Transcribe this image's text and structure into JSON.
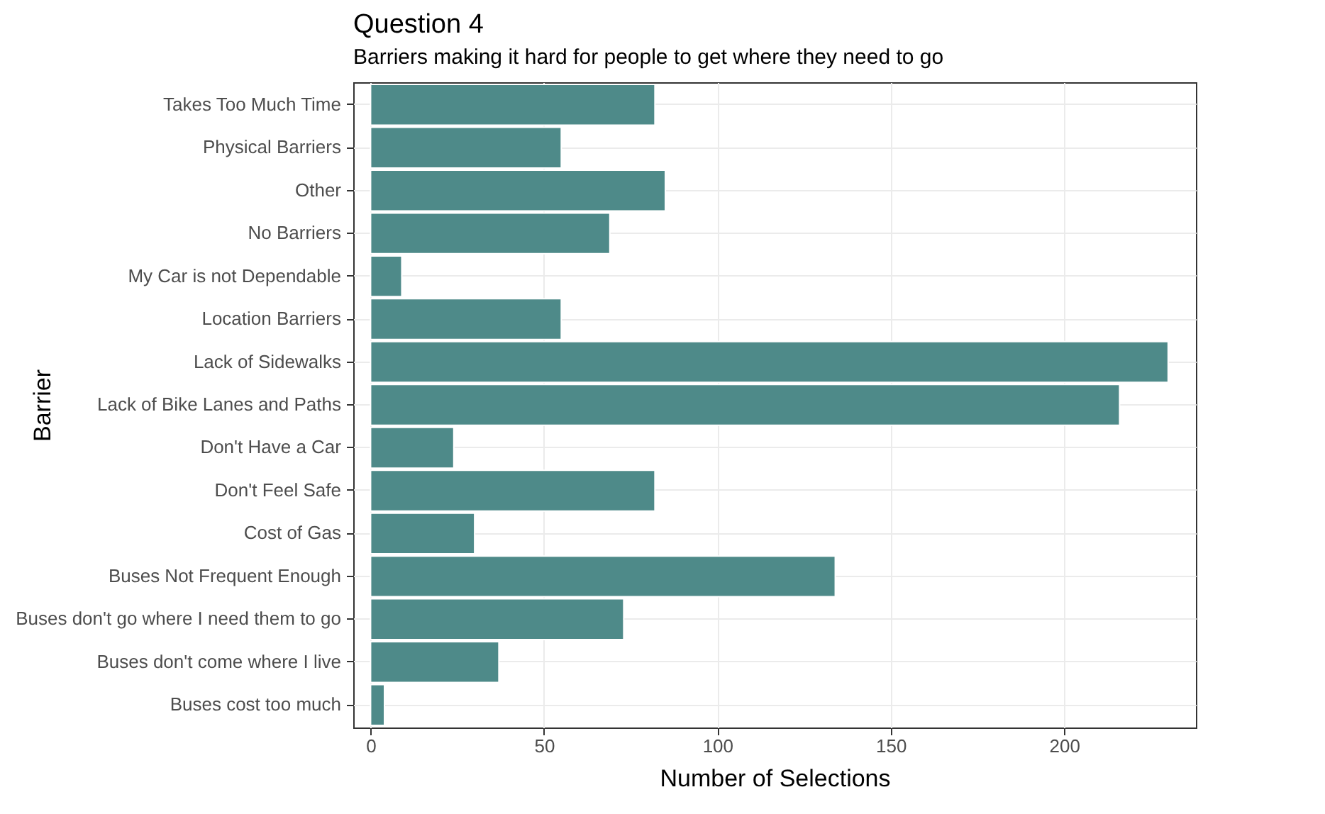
{
  "chart_data": {
    "type": "bar",
    "orientation": "horizontal",
    "title": "Question 4",
    "subtitle": "Barriers making it hard for people to get where they need to go",
    "xlabel": "Number of Selections",
    "ylabel": "Barrier",
    "categories": [
      "Takes Too Much Time",
      "Physical Barriers",
      "Other",
      "No Barriers",
      "My Car is not Dependable",
      "Location Barriers",
      "Lack of Sidewalks",
      "Lack of Bike Lanes and Paths",
      "Don't Have a Car",
      "Don't Feel Safe",
      "Cost of Gas",
      "Buses Not Frequent Enough",
      "Buses don't go where I need them to go",
      "Buses don't come where I live",
      "Buses cost too much"
    ],
    "values": [
      82,
      55,
      85,
      69,
      9,
      55,
      230,
      216,
      24,
      82,
      30,
      134,
      73,
      37,
      4
    ],
    "color": "#4e8a89",
    "xlim": [
      -5,
      238
    ],
    "xticks": [
      0,
      50,
      100,
      150,
      200
    ],
    "grid": true
  }
}
